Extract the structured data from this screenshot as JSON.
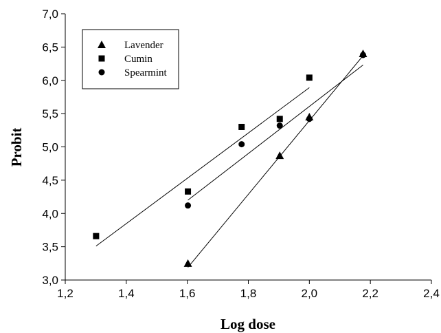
{
  "chart_data": {
    "type": "scatter",
    "title": "",
    "xlabel": "Log dose",
    "ylabel": "Probit",
    "xlim": [
      1.2,
      2.4
    ],
    "ylim": [
      3.0,
      7.0
    ],
    "xticks": [
      "1,2",
      "1,4",
      "1,6",
      "1,8",
      "2,0",
      "2,2",
      "2,4"
    ],
    "yticks": [
      "3,0",
      "3,5",
      "4,0",
      "4,5",
      "5,0",
      "5,5",
      "6,0",
      "6,5",
      "7,0"
    ],
    "grid": false,
    "legend_position": "top-left",
    "series": [
      {
        "name": "Lavender",
        "marker": "triangle",
        "x": [
          1.602,
          1.903,
          2.0,
          2.176
        ],
        "y": [
          3.25,
          4.87,
          5.45,
          6.4
        ],
        "fit": [
          [
            1.602,
            3.19
          ],
          [
            2.176,
            6.37
          ]
        ]
      },
      {
        "name": "Cumin",
        "marker": "square",
        "x": [
          1.301,
          1.602,
          1.778,
          1.903,
          2.0
        ],
        "y": [
          3.66,
          4.33,
          5.3,
          5.42,
          6.04
        ],
        "fit": [
          [
            1.301,
            3.51
          ],
          [
            2.0,
            5.89
          ]
        ]
      },
      {
        "name": "Spearmint",
        "marker": "circle",
        "x": [
          1.602,
          1.778,
          1.903,
          2.0,
          2.176
        ],
        "y": [
          4.12,
          5.04,
          5.32,
          5.42,
          6.38
        ],
        "fit": [
          [
            1.602,
            4.2
          ],
          [
            2.176,
            6.23
          ]
        ]
      }
    ]
  }
}
